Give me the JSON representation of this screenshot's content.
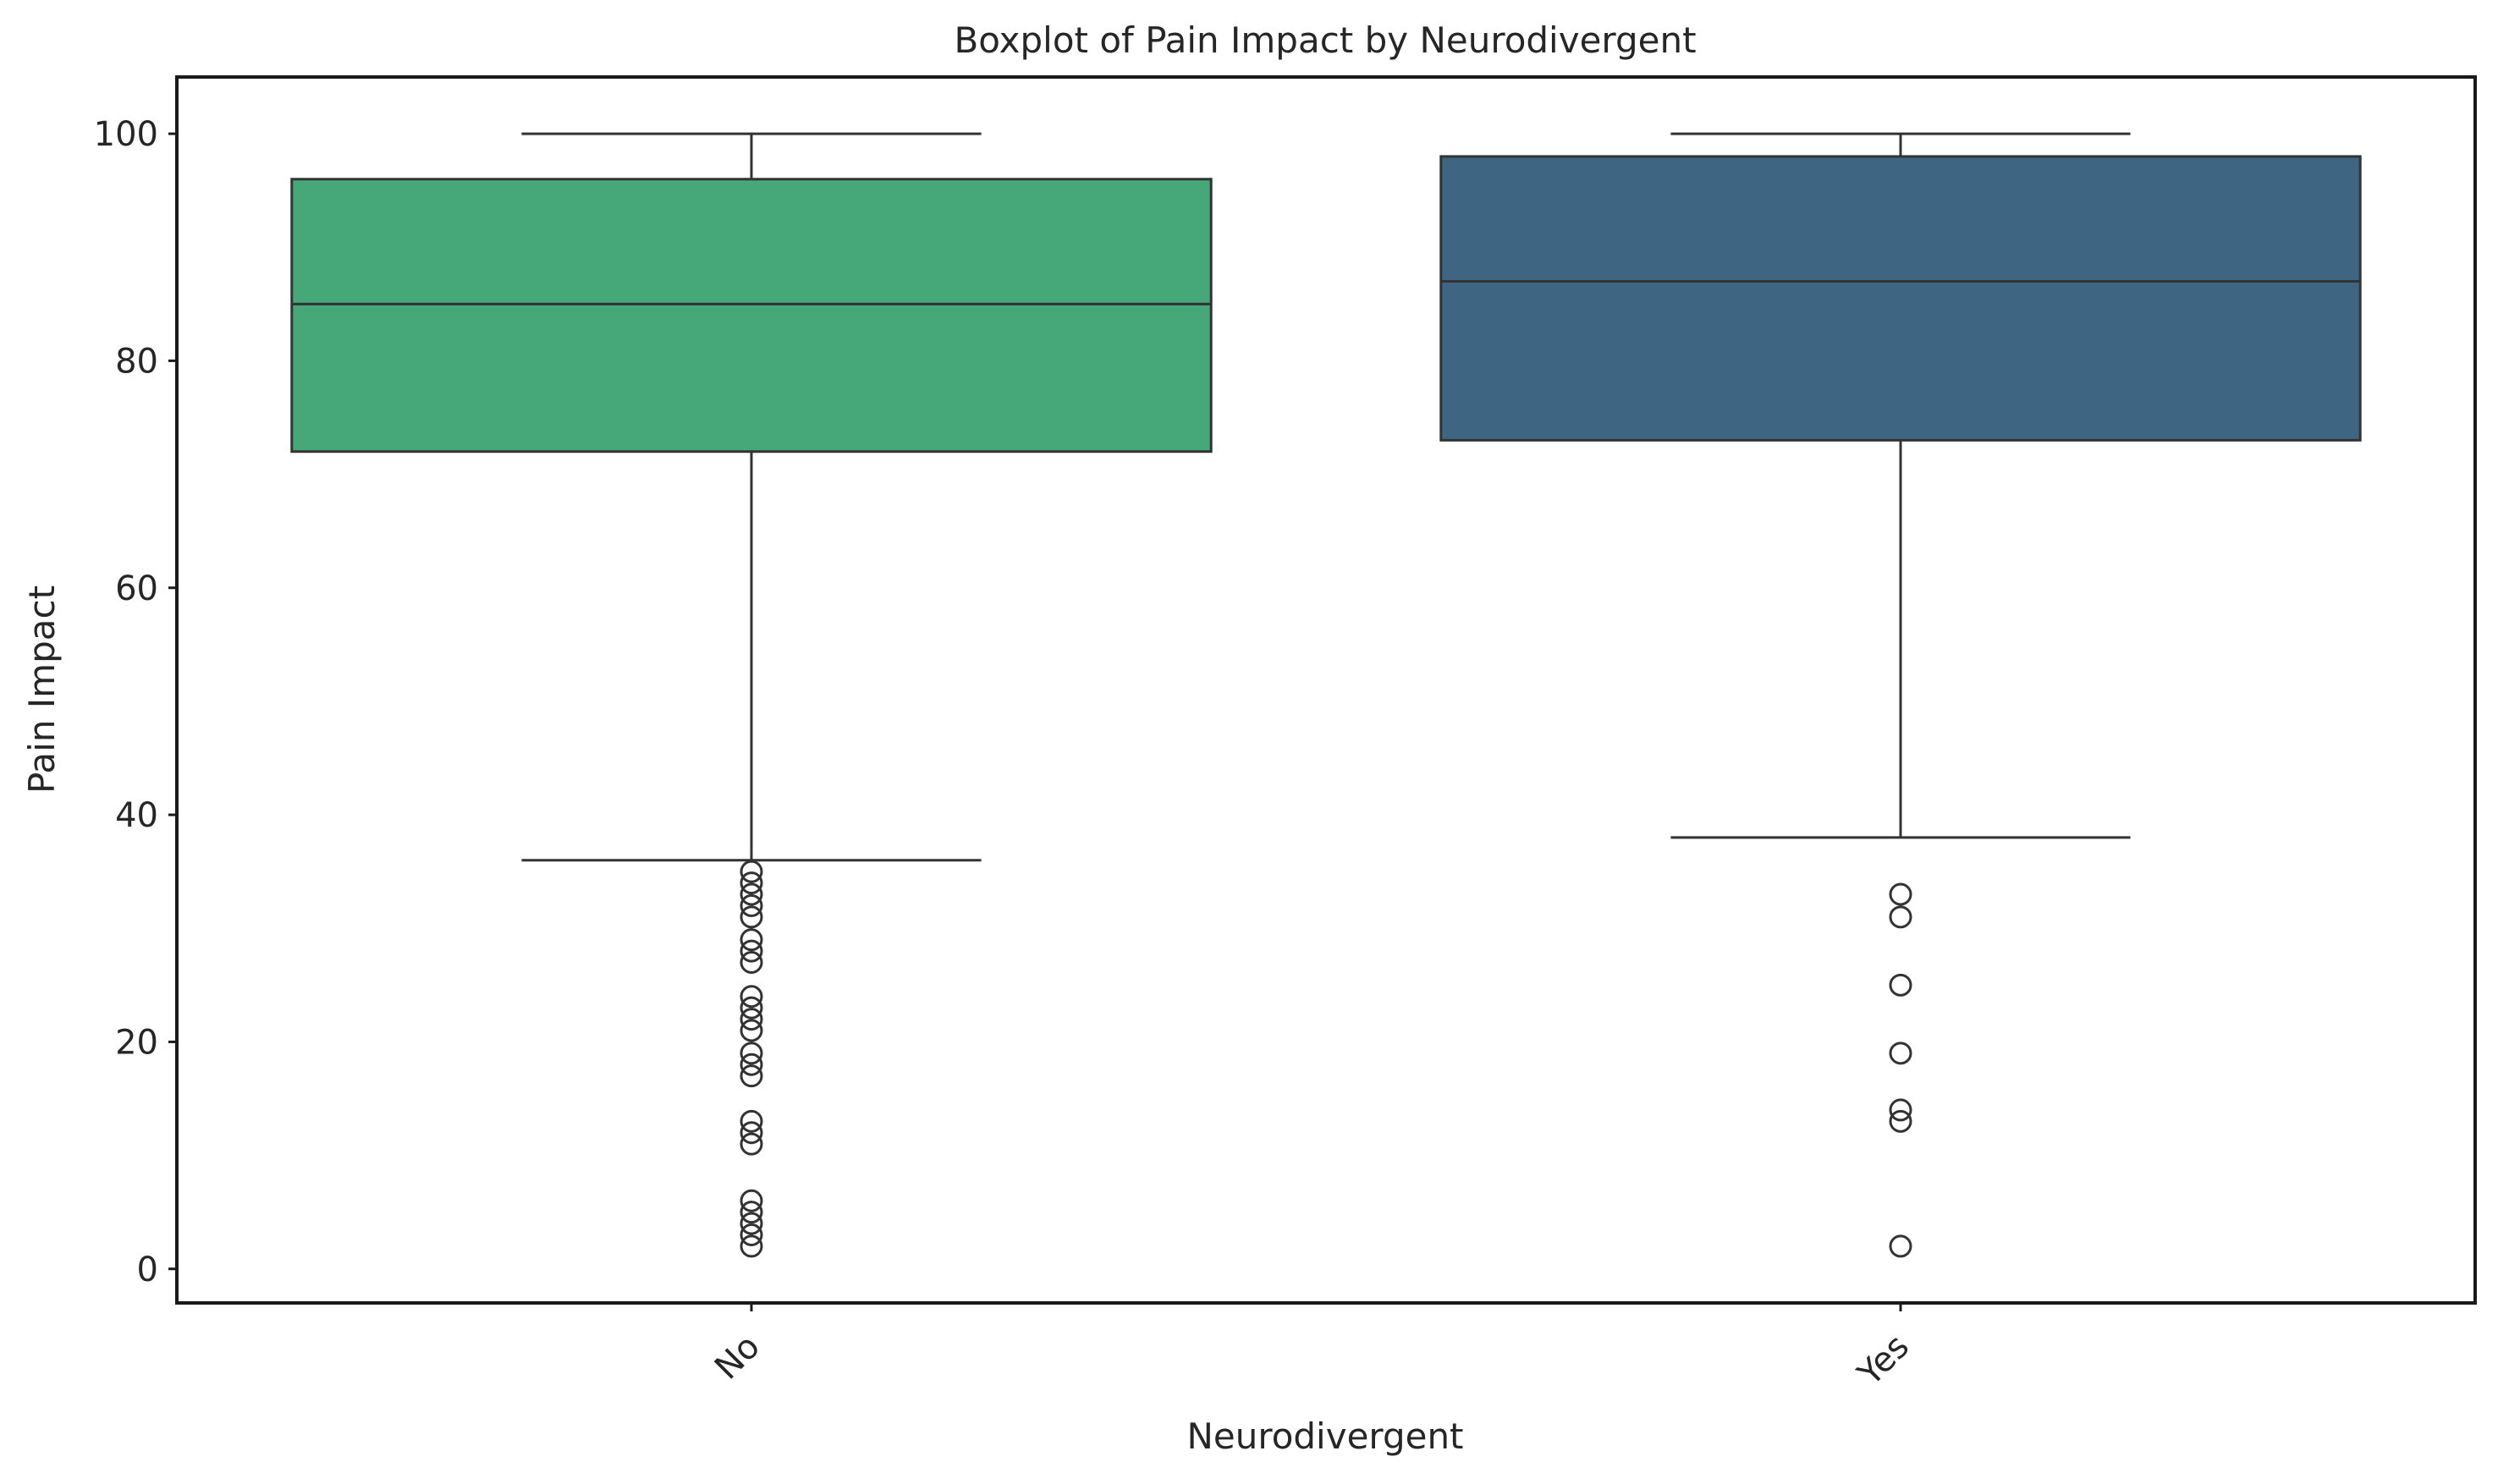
{
  "chart_data": {
    "type": "box",
    "title": "Boxplot of Pain Impact by Neurodivergent",
    "xlabel": "Neurodivergent",
    "ylabel": "Pain Impact",
    "categories": [
      "No",
      "Yes"
    ],
    "ylim": [
      -3,
      105
    ],
    "yticks": [
      0,
      20,
      40,
      60,
      80,
      100
    ],
    "grid": false,
    "legend": "none",
    "boxes": [
      {
        "category": "No",
        "whisker_low": 36,
        "q1": 72,
        "median": 85,
        "q3": 96,
        "whisker_high": 100,
        "outliers": [
          35,
          34,
          33,
          32,
          31,
          29,
          28,
          27,
          24,
          23,
          22,
          21,
          19,
          18,
          17,
          13,
          12,
          11,
          6,
          5,
          4,
          3,
          2
        ],
        "color": "#46a878"
      },
      {
        "category": "Yes",
        "whisker_low": 38,
        "q1": 73,
        "median": 87,
        "q3": 98,
        "whisker_high": 100,
        "outliers": [
          33,
          31,
          25,
          19,
          14,
          13,
          2
        ],
        "color": "#3e6682"
      }
    ],
    "colors": {
      "line": "#333333",
      "frame": "#1a1a1a",
      "text": "#262626"
    }
  }
}
